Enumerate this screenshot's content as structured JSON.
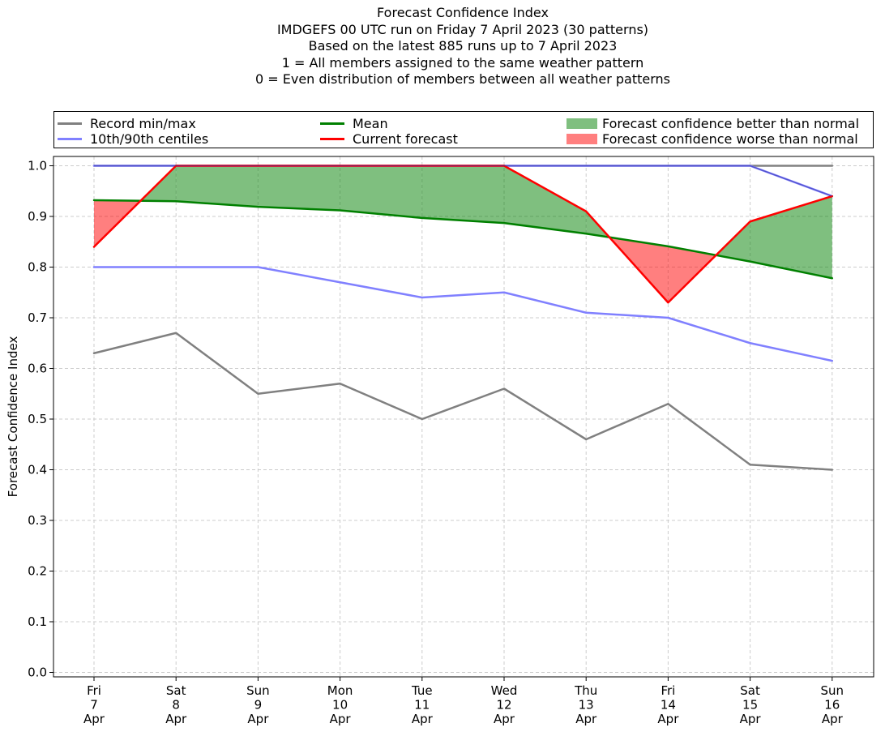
{
  "chart_data": {
    "type": "line",
    "title_lines": [
      "Forecast Confidence Index",
      "IMDGEFS 00 UTC run on Friday 7 April 2023 (30 patterns)",
      "Based on the latest 885 runs up to 7 April 2023",
      "1 = All members assigned to the same weather pattern",
      "0 = Even distribution of members between all weather patterns"
    ],
    "ylabel": "Forecast Confidence Index",
    "ylim": [
      0.0,
      1.0
    ],
    "yticks": [
      "0.0",
      "0.1",
      "0.2",
      "0.3",
      "0.4",
      "0.5",
      "0.6",
      "0.7",
      "0.8",
      "0.9",
      "1.0"
    ],
    "grid": true,
    "legend_position": "top",
    "categories": [
      [
        "Fri",
        "7",
        "Apr"
      ],
      [
        "Sat",
        "8",
        "Apr"
      ],
      [
        "Sun",
        "9",
        "Apr"
      ],
      [
        "Mon",
        "10",
        "Apr"
      ],
      [
        "Tue",
        "11",
        "Apr"
      ],
      [
        "Wed",
        "12",
        "Apr"
      ],
      [
        "Thu",
        "13",
        "Apr"
      ],
      [
        "Fri",
        "14",
        "Apr"
      ],
      [
        "Sat",
        "15",
        "Apr"
      ],
      [
        "Sun",
        "16",
        "Apr"
      ]
    ],
    "series": [
      {
        "name": "Record min/max",
        "role": "record_min",
        "color": "#808080",
        "values": [
          0.63,
          0.67,
          0.55,
          0.57,
          0.5,
          0.56,
          0.46,
          0.53,
          0.41,
          0.4
        ]
      },
      {
        "name": "Record min/max",
        "role": "record_max",
        "color": "#808080",
        "values": [
          1.0,
          1.0,
          1.0,
          1.0,
          1.0,
          1.0,
          1.0,
          1.0,
          1.0,
          1.0
        ]
      },
      {
        "name": "10th/90th centiles",
        "role": "p10",
        "color": "#8080ff",
        "values": [
          0.8,
          0.8,
          0.8,
          0.77,
          0.74,
          0.75,
          0.71,
          0.7,
          0.65,
          0.615
        ]
      },
      {
        "name": "10th/90th centiles",
        "role": "p90",
        "color": "#8080ff",
        "values": [
          1.0,
          1.0,
          1.0,
          1.0,
          1.0,
          1.0,
          1.0,
          1.0,
          1.0,
          0.94
        ]
      },
      {
        "name": "Mean",
        "role": "mean",
        "color": "#008000",
        "values": [
          0.932,
          0.93,
          0.919,
          0.912,
          0.897,
          0.887,
          0.866,
          0.841,
          0.811,
          0.778
        ]
      },
      {
        "name": "Current forecast",
        "role": "current",
        "color": "#ff0000",
        "values": [
          0.84,
          1.0,
          1.0,
          1.0,
          1.0,
          1.0,
          0.91,
          0.73,
          0.89,
          0.94
        ]
      }
    ],
    "fills": [
      {
        "name": "Forecast confidence better than normal",
        "color": "#008000"
      },
      {
        "name": "Forecast confidence worse than normal",
        "color": "#ff0000"
      }
    ]
  }
}
